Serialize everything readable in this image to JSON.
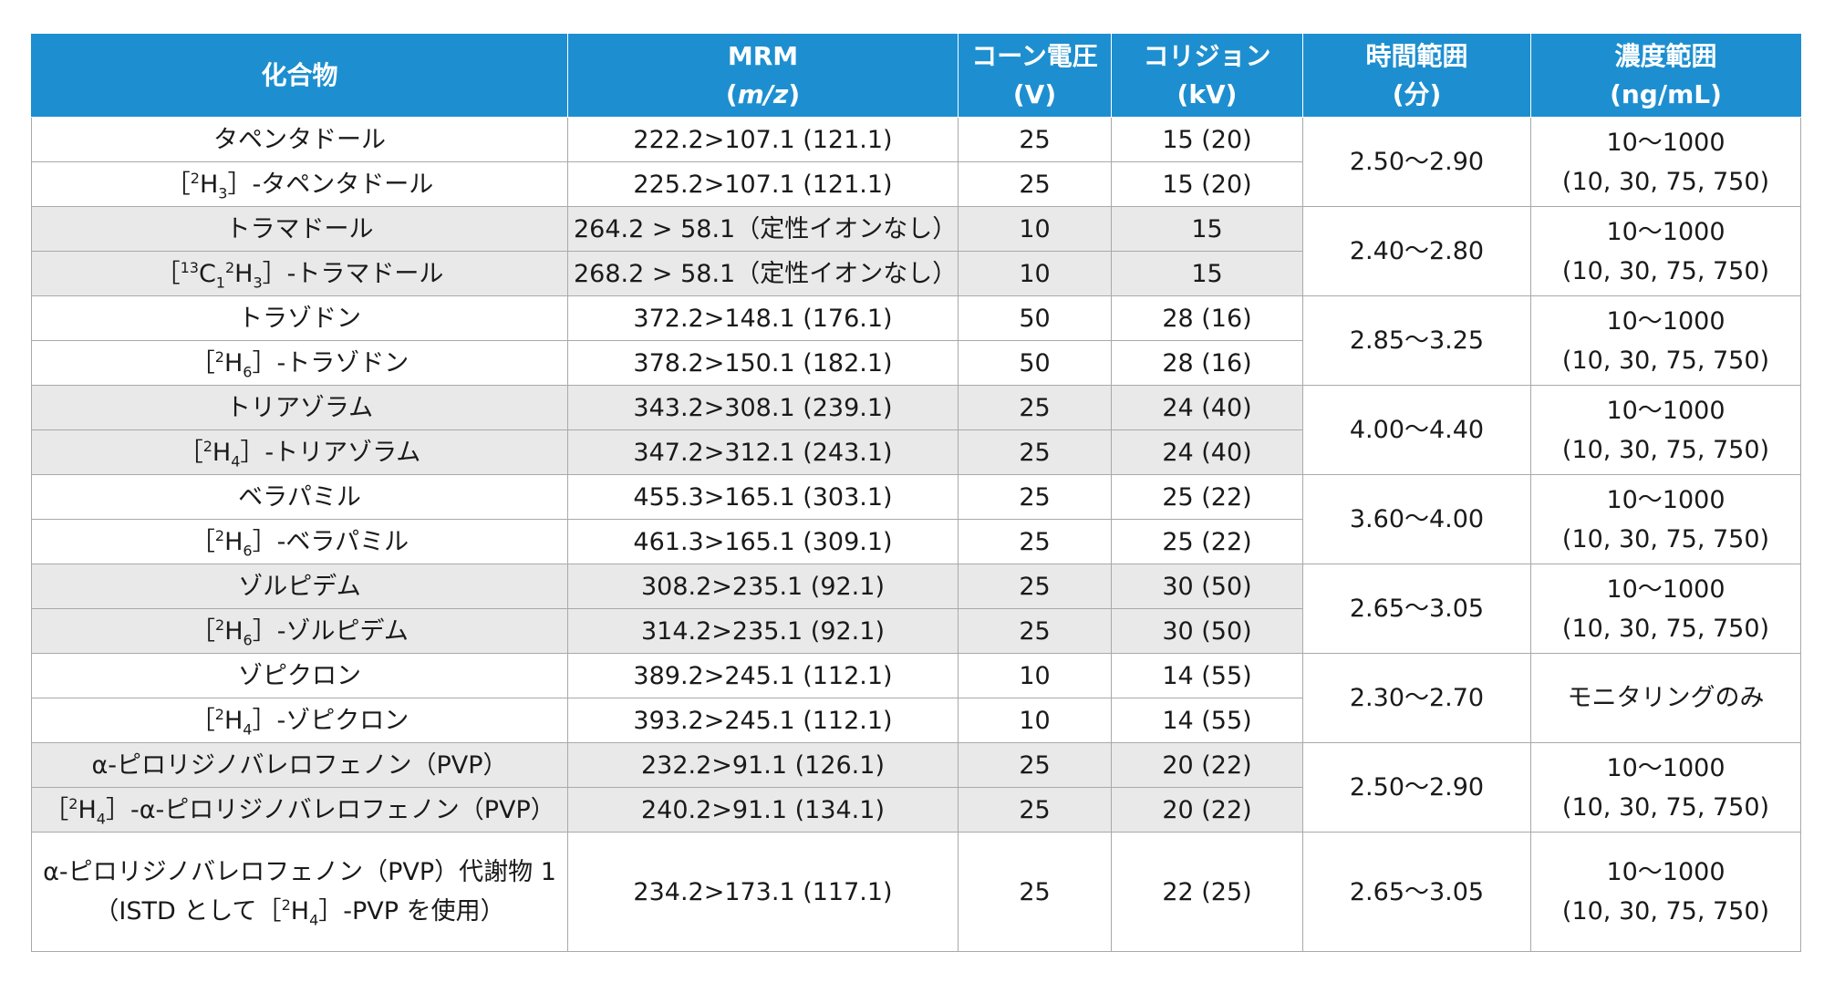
{
  "header": {
    "compound": "化合物",
    "mrm_line1": "MRM",
    "mrm_paren_open": "(",
    "mrm_unit": "m/z",
    "mrm_paren_close": ")",
    "cone_line1": "コーン電圧",
    "cone_line2": "(V)",
    "collision_line1": "コリジョン",
    "collision_line2": "(kV)",
    "time_line1": "時間範囲",
    "time_line2": "(分)",
    "conc_line1": "濃度範囲",
    "conc_line2": "(ng/mL)"
  },
  "rows": [
    {
      "pre": "",
      "iso_sup": "",
      "iso_sub": "",
      "iso_sup2": "",
      "iso_sub2": "",
      "name": "タペンタドール",
      "mrm": "222.2>107.1 (121.1)",
      "cone": "25",
      "collision": "15 (20)"
    },
    {
      "pre": "［",
      "iso_sup": "2",
      "iso_el": "H",
      "iso_sub": "3",
      "post": "］-タペンタドール",
      "mrm": "225.2>107.1 (121.1)",
      "cone": "25",
      "collision": "15 (20)"
    },
    {
      "name": "トラマドール",
      "mrm": "264.2 > 58.1（定性イオンなし）",
      "cone": "10",
      "collision": "15"
    },
    {
      "pre": "［",
      "iso_sup": "13",
      "iso_el": "C",
      "iso_sub": "1",
      "iso_sup2": "2",
      "iso_el2": "H",
      "iso_sub2": "3",
      "post": "］-トラマドール",
      "mrm": "268.2 > 58.1（定性イオンなし）",
      "cone": "10",
      "collision": "15"
    },
    {
      "name": "トラゾドン",
      "mrm": "372.2>148.1 (176.1)",
      "cone": "50",
      "collision": "28 (16)"
    },
    {
      "pre": "［",
      "iso_sup": "2",
      "iso_el": "H",
      "iso_sub": "6",
      "post": "］-トラゾドン",
      "mrm": "378.2>150.1 (182.1)",
      "cone": "50",
      "collision": "28 (16)"
    },
    {
      "name": "トリアゾラム",
      "mrm": "343.2>308.1 (239.1)",
      "cone": "25",
      "collision": "24 (40)"
    },
    {
      "pre": "［",
      "iso_sup": "2",
      "iso_el": "H",
      "iso_sub": "4",
      "post": "］-トリアゾラム",
      "mrm": "347.2>312.1 (243.1)",
      "cone": "25",
      "collision": "24 (40)"
    },
    {
      "name": "ベラパミル",
      "mrm": "455.3>165.1 (303.1)",
      "cone": "25",
      "collision": "25 (22)"
    },
    {
      "pre": "［",
      "iso_sup": "2",
      "iso_el": "H",
      "iso_sub": "6",
      "post": "］-ベラパミル",
      "mrm": "461.3>165.1 (309.1)",
      "cone": "25",
      "collision": "25 (22)"
    },
    {
      "name": "ゾルピデム",
      "mrm": "308.2>235.1 (92.1)",
      "cone": "25",
      "collision": "30 (50)"
    },
    {
      "pre": "［",
      "iso_sup": "2",
      "iso_el": "H",
      "iso_sub": "6",
      "post": "］-ゾルピデム",
      "mrm": "314.2>235.1 (92.1)",
      "cone": "25",
      "collision": "30 (50)"
    },
    {
      "name": "ゾピクロン",
      "mrm": "389.2>245.1 (112.1)",
      "cone": "10",
      "collision": "14 (55)"
    },
    {
      "pre": "［",
      "iso_sup": "2",
      "iso_el": "H",
      "iso_sub": "4",
      "post": "］-ゾピクロン",
      "mrm": "393.2>245.1 (112.1)",
      "cone": "10",
      "collision": "14 (55)"
    },
    {
      "name": "α-ピロリジノバレロフェノン（PVP）",
      "mrm": "232.2>91.1 (126.1)",
      "cone": "25",
      "collision": "20 (22)"
    },
    {
      "pre": "［",
      "iso_sup": "2",
      "iso_el": "H",
      "iso_sub": "4",
      "post": "］-α-ピロリジノバレロフェノン（PVP）",
      "mrm": "240.2>91.1 (134.1)",
      "cone": "25",
      "collision": "20 (22)"
    },
    {
      "name": "α-ピロリジノバレロフェノン（PVP）代謝物 1",
      "name2_pre": "（ISTD として［",
      "name2_sup": "2",
      "name2_el": "H",
      "name2_sub": "4",
      "name2_post": "］-PVP を使用）",
      "mrm": "234.2>173.1 (117.1)",
      "cone": "25",
      "collision": "22 (25)"
    }
  ],
  "groups": [
    {
      "time": "2.50～2.90",
      "conc1": "10～1000",
      "conc2": "(10, 30, 75, 750)"
    },
    {
      "time": "2.40～2.80",
      "conc1": "10～1000",
      "conc2": "(10, 30, 75, 750)"
    },
    {
      "time": "2.85～3.25",
      "conc1": "10～1000",
      "conc2": "(10, 30, 75, 750)"
    },
    {
      "time": "4.00～4.40",
      "conc1": "10～1000",
      "conc2": "(10, 30, 75, 750)"
    },
    {
      "time": "3.60～4.00",
      "conc1": "10～1000",
      "conc2": "(10, 30, 75, 750)"
    },
    {
      "time": "2.65～3.05",
      "conc1": "10～1000",
      "conc2": "(10, 30, 75, 750)"
    },
    {
      "time": "2.30～2.70",
      "conc1": "モニタリングのみ",
      "conc2": ""
    },
    {
      "time": "2.50～2.90",
      "conc1": "10～1000",
      "conc2": "(10, 30, 75, 750)"
    },
    {
      "time": "2.65～3.05",
      "conc1": "10～1000",
      "conc2": "(10, 30, 75, 750)"
    }
  ],
  "colors": {
    "header_bg": "#1d8fd0",
    "header_text": "#ffffff",
    "alt_row_bg": "#e9e9e9",
    "border": "#a9a9a9"
  }
}
